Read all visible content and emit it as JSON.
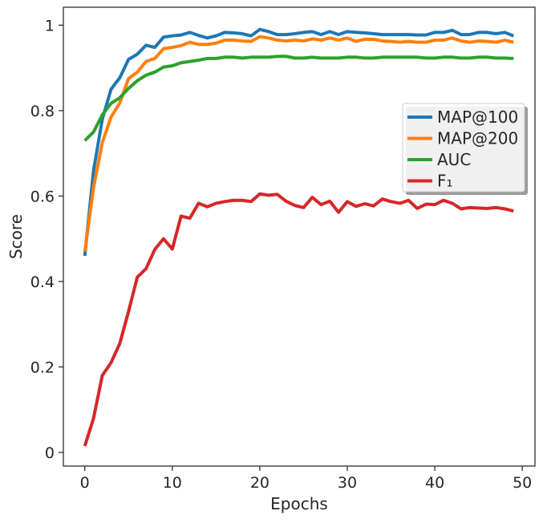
{
  "chart_data": {
    "type": "line",
    "title": "",
    "xlabel": "Epochs",
    "ylabel": "Score",
    "xlim": [
      -2.45,
      51.45
    ],
    "ylim": [
      -0.032,
      1.042
    ],
    "xticks": [
      0,
      10,
      20,
      30,
      40,
      50
    ],
    "xtick_labels": [
      "0",
      "10",
      "20",
      "30",
      "40",
      "50"
    ],
    "yticks": [
      0,
      0.2,
      0.4,
      0.6,
      0.8,
      1.0
    ],
    "ytick_labels": [
      "0",
      "0.2",
      "0.4",
      "0.6",
      "0.8",
      "1"
    ],
    "grid": false,
    "legend_position": "center-right",
    "x": [
      0,
      1,
      2,
      3,
      4,
      5,
      6,
      7,
      8,
      9,
      10,
      11,
      12,
      13,
      14,
      15,
      16,
      17,
      18,
      19,
      20,
      21,
      22,
      23,
      24,
      25,
      26,
      27,
      28,
      29,
      30,
      31,
      32,
      33,
      34,
      35,
      36,
      37,
      38,
      39,
      40,
      41,
      42,
      43,
      44,
      45,
      46,
      47,
      48,
      49
    ],
    "series": [
      {
        "name": "MAP@100",
        "color": "#1f77b4",
        "values": [
          0.46,
          0.66,
          0.78,
          0.85,
          0.877,
          0.92,
          0.932,
          0.953,
          0.948,
          0.972,
          0.975,
          0.977,
          0.983,
          0.976,
          0.97,
          0.975,
          0.983,
          0.982,
          0.98,
          0.975,
          0.99,
          0.985,
          0.978,
          0.978,
          0.98,
          0.983,
          0.985,
          0.978,
          0.985,
          0.978,
          0.985,
          0.983,
          0.982,
          0.98,
          0.978,
          0.978,
          0.978,
          0.978,
          0.977,
          0.977,
          0.983,
          0.983,
          0.988,
          0.978,
          0.978,
          0.983,
          0.983,
          0.98,
          0.983,
          0.975
        ]
      },
      {
        "name": "MAP@200",
        "color": "#ff7f0e",
        "values": [
          0.47,
          0.62,
          0.725,
          0.785,
          0.818,
          0.875,
          0.89,
          0.915,
          0.922,
          0.945,
          0.948,
          0.952,
          0.96,
          0.955,
          0.955,
          0.958,
          0.965,
          0.965,
          0.963,
          0.962,
          0.973,
          0.97,
          0.965,
          0.963,
          0.965,
          0.963,
          0.968,
          0.965,
          0.97,
          0.965,
          0.97,
          0.962,
          0.967,
          0.967,
          0.963,
          0.962,
          0.96,
          0.962,
          0.96,
          0.96,
          0.965,
          0.965,
          0.97,
          0.963,
          0.96,
          0.963,
          0.962,
          0.96,
          0.965,
          0.96
        ]
      },
      {
        "name": "AUC",
        "color": "#2ca02c",
        "values": [
          0.73,
          0.75,
          0.79,
          0.817,
          0.83,
          0.852,
          0.87,
          0.883,
          0.89,
          0.902,
          0.905,
          0.912,
          0.915,
          0.918,
          0.922,
          0.922,
          0.925,
          0.925,
          0.923,
          0.925,
          0.925,
          0.925,
          0.927,
          0.927,
          0.923,
          0.923,
          0.925,
          0.923,
          0.923,
          0.923,
          0.925,
          0.925,
          0.923,
          0.923,
          0.925,
          0.925,
          0.925,
          0.925,
          0.925,
          0.923,
          0.923,
          0.925,
          0.925,
          0.923,
          0.923,
          0.925,
          0.925,
          0.923,
          0.923,
          0.922
        ]
      },
      {
        "name": "F₁",
        "color": "#d62728",
        "values": [
          0.015,
          0.08,
          0.18,
          0.21,
          0.255,
          0.33,
          0.41,
          0.43,
          0.475,
          0.5,
          0.476,
          0.553,
          0.548,
          0.583,
          0.575,
          0.583,
          0.587,
          0.59,
          0.59,
          0.587,
          0.605,
          0.602,
          0.604,
          0.588,
          0.578,
          0.573,
          0.597,
          0.58,
          0.588,
          0.562,
          0.587,
          0.576,
          0.582,
          0.577,
          0.593,
          0.587,
          0.583,
          0.59,
          0.571,
          0.581,
          0.58,
          0.59,
          0.583,
          0.57,
          0.573,
          0.572,
          0.571,
          0.573,
          0.57,
          0.565
        ]
      }
    ],
    "legend": [
      {
        "label": "MAP@100",
        "color": "#1f77b4"
      },
      {
        "label": "MAP@200",
        "color": "#ff7f0e"
      },
      {
        "label": "AUC",
        "color": "#2ca02c"
      },
      {
        "label": "F₁",
        "color": "#d62728"
      }
    ]
  }
}
